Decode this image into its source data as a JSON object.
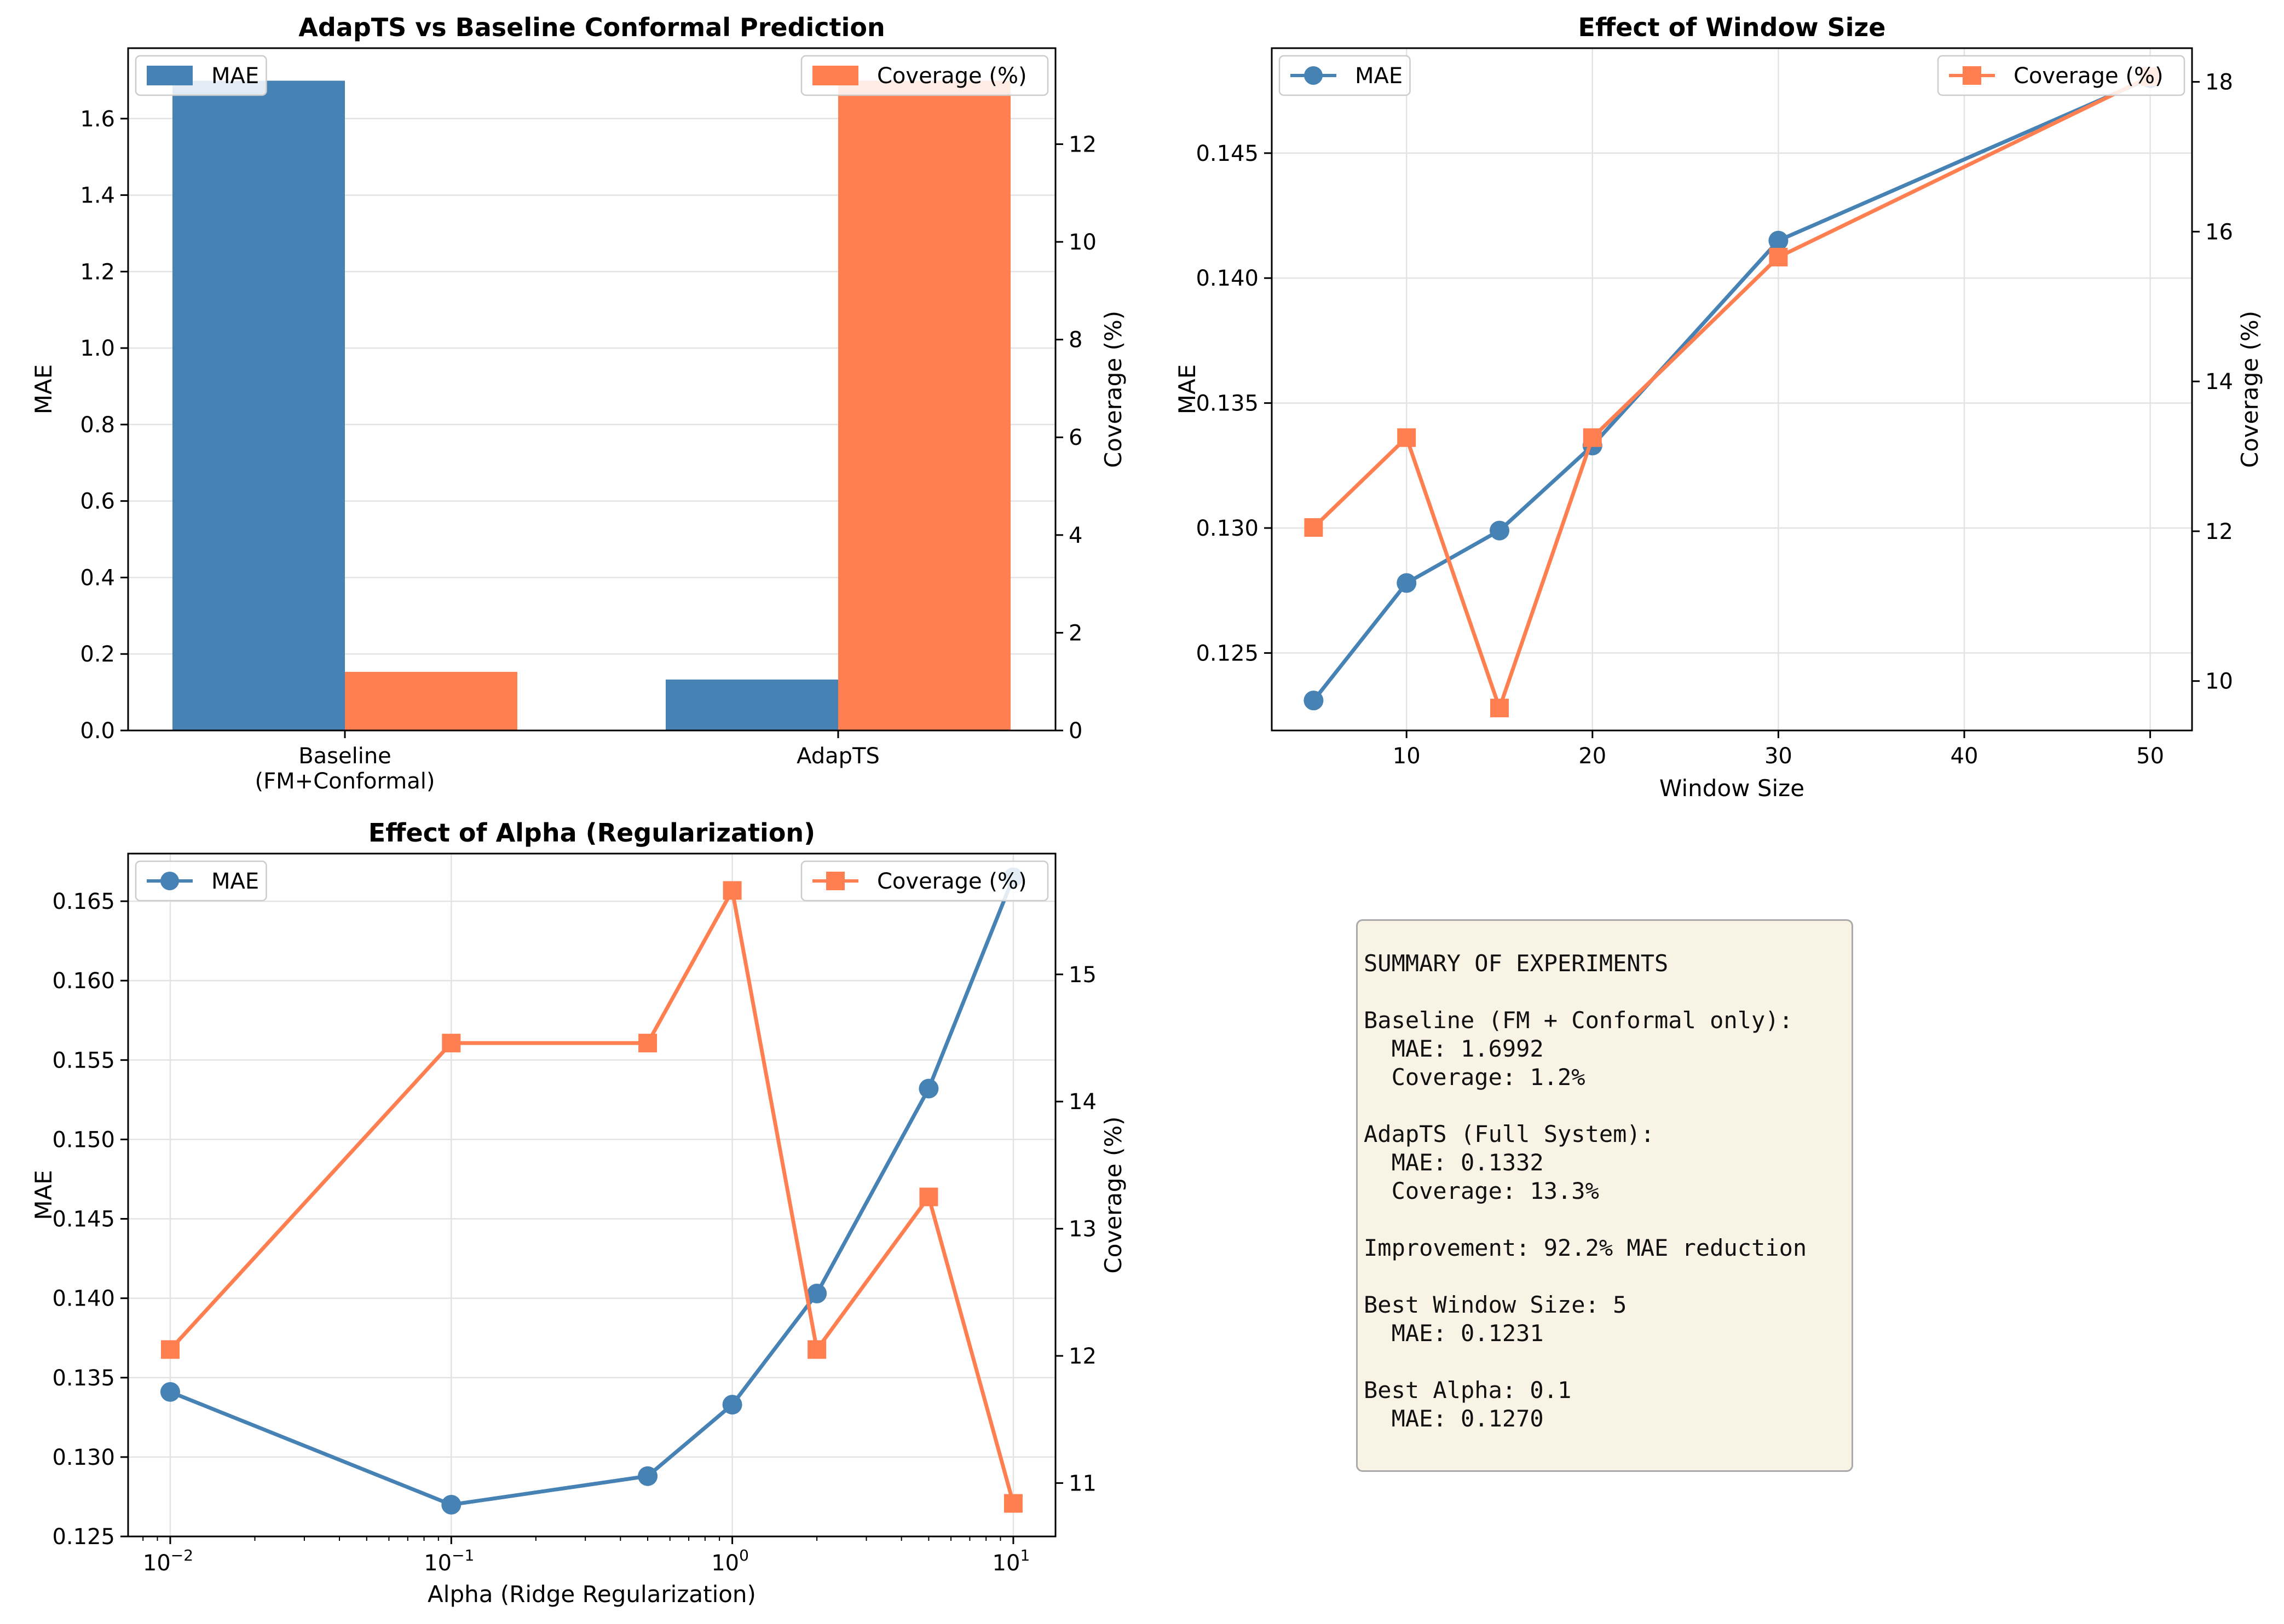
{
  "colors": {
    "mae": "#4682b4",
    "coverage": "#ff7f50",
    "grid": "#e3e3e3"
  },
  "chart_data": [
    {
      "type": "bar",
      "title": "AdapTS vs Baseline Conformal Prediction",
      "categories": [
        "Baseline\n(FM+Conformal)",
        "AdapTS"
      ],
      "ylabel": "MAE",
      "ylabel_right": "Coverage (%)",
      "ylim": [
        0,
        1.7843
      ],
      "ylim_right": [
        0,
        13.965
      ],
      "yticks": [
        0.0,
        0.2,
        0.4,
        0.6,
        0.8,
        1.0,
        1.2,
        1.4,
        1.6
      ],
      "yticks_right": [
        0,
        2,
        4,
        6,
        8,
        10,
        12
      ],
      "series": [
        {
          "name": "MAE",
          "axis": "left",
          "values": [
            1.6992,
            0.1332
          ]
        },
        {
          "name": "Coverage (%)",
          "axis": "right",
          "values": [
            1.2,
            13.3
          ]
        }
      ],
      "legend": [
        "upper left (MAE)",
        "upper right (Coverage (%))"
      ],
      "grid": true
    },
    {
      "type": "line",
      "title": "Effect of Window Size",
      "xlabel": "Window Size",
      "ylabel": "MAE",
      "ylabel_right": "Coverage (%)",
      "x": [
        5,
        10,
        15,
        20,
        30,
        50
      ],
      "xlim": [
        2.75,
        52.25
      ],
      "xticks": [
        10,
        20,
        30,
        40,
        50
      ],
      "ylim": [
        0.1219,
        0.1492
      ],
      "ylim_right": [
        9.34,
        18.45
      ],
      "yticks": [
        0.125,
        0.13,
        0.135,
        0.14,
        0.145
      ],
      "yticks_right": [
        10,
        12,
        14,
        16,
        18
      ],
      "series": [
        {
          "name": "MAE",
          "axis": "left",
          "marker": "circle",
          "values": [
            0.1231,
            0.1278,
            0.1299,
            0.1333,
            0.1415,
            0.148
          ]
        },
        {
          "name": "Coverage (%)",
          "axis": "right",
          "marker": "square",
          "values": [
            12.05,
            13.25,
            9.64,
            13.25,
            15.66,
            18.07
          ]
        }
      ],
      "legend": [
        "upper left (MAE)",
        "upper right (Coverage (%))"
      ],
      "grid": true
    },
    {
      "type": "line",
      "title": "Effect of Alpha (Regularization)",
      "xlabel": "Alpha (Ridge Regularization)",
      "ylabel": "MAE",
      "ylabel_right": "Coverage (%)",
      "xscale": "log",
      "x": [
        0.01,
        0.1,
        0.5,
        1,
        2,
        5,
        10
      ],
      "xlim": [
        0.00708,
        14.13
      ],
      "xticks": [
        "10^-2",
        "10^-1",
        "10^0",
        "10^1"
      ],
      "ylim": [
        0.125,
        0.168
      ],
      "ylim_right": [
        10.58,
        15.95
      ],
      "yticks": [
        0.125,
        0.13,
        0.135,
        0.14,
        0.145,
        0.15,
        0.155,
        0.16,
        0.165
      ],
      "yticks_right": [
        11,
        12,
        13,
        14,
        15
      ],
      "series": [
        {
          "name": "MAE",
          "axis": "left",
          "marker": "circle",
          "values": [
            0.1341,
            0.127,
            0.1288,
            0.1333,
            0.1403,
            0.1532,
            0.1665
          ]
        },
        {
          "name": "Coverage (%)",
          "axis": "right",
          "marker": "square",
          "values": [
            12.05,
            14.46,
            14.46,
            15.66,
            12.05,
            13.25,
            10.84
          ]
        }
      ],
      "legend": [
        "upper left (MAE)",
        "upper right (Coverage (%))"
      ],
      "grid": true
    }
  ],
  "summary": {
    "lines": [
      "SUMMARY OF EXPERIMENTS",
      "",
      "Baseline (FM + Conformal only):",
      "  MAE: 1.6992",
      "  Coverage: 1.2%",
      "",
      "AdapTS (Full System):",
      "  MAE: 0.1332",
      "  Coverage: 13.3%",
      "",
      "Improvement: 92.2% MAE reduction",
      "",
      "Best Window Size: 5",
      "  MAE: 0.1231",
      "",
      "Best Alpha: 0.1",
      "  MAE: 0.1270"
    ]
  }
}
